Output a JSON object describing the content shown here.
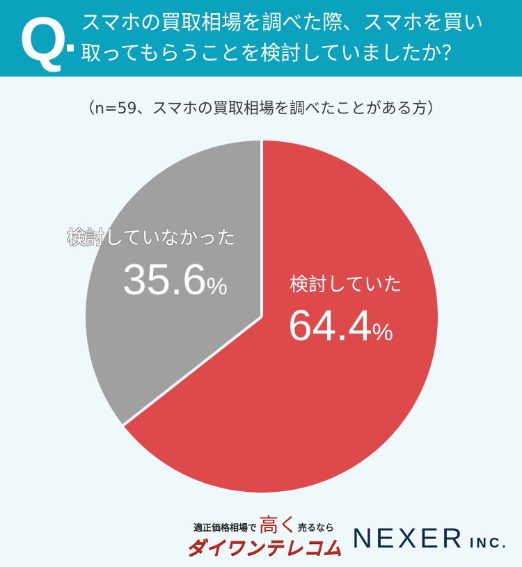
{
  "header": {
    "q_mark": "Q",
    "question_line1": "スマホの買取相場を調べた際、スマホを買い",
    "question_line2": "取ってもらうことを検討していましたか？",
    "bg_color": "#0aa2bd"
  },
  "sample_note": "（n=59、スマホの買取相場を調べたことがある方）",
  "chart_data": {
    "type": "pie",
    "title": "スマホの買取相場を調べた際、スマホを買い取ってもらうことを検討していましたか？",
    "subtitle": "（n=59、スマホの買取相場を調べたことがある方）",
    "categories": [
      "検討していた",
      "検討していなかった"
    ],
    "values": [
      64.4,
      35.6
    ],
    "unit": "%",
    "colors": [
      "#de4a4c",
      "#a0a0a0"
    ],
    "start_angle": "12 o'clock, clockwise",
    "legend": "none (inline labels)"
  },
  "labels": {
    "considered": {
      "name": "検討していた",
      "value": "64.4",
      "unit": "%"
    },
    "not_considered": {
      "name": "検討していなかった",
      "value": "35.6",
      "unit": "%"
    }
  },
  "footer": {
    "daiwan": {
      "tagline_left": "適正価格相場で",
      "tagline_emph": "高く",
      "tagline_right": "売るなら",
      "brand": "ダイワンテレコム"
    },
    "nexer": {
      "name": "NEXER",
      "suffix": "INC."
    }
  }
}
